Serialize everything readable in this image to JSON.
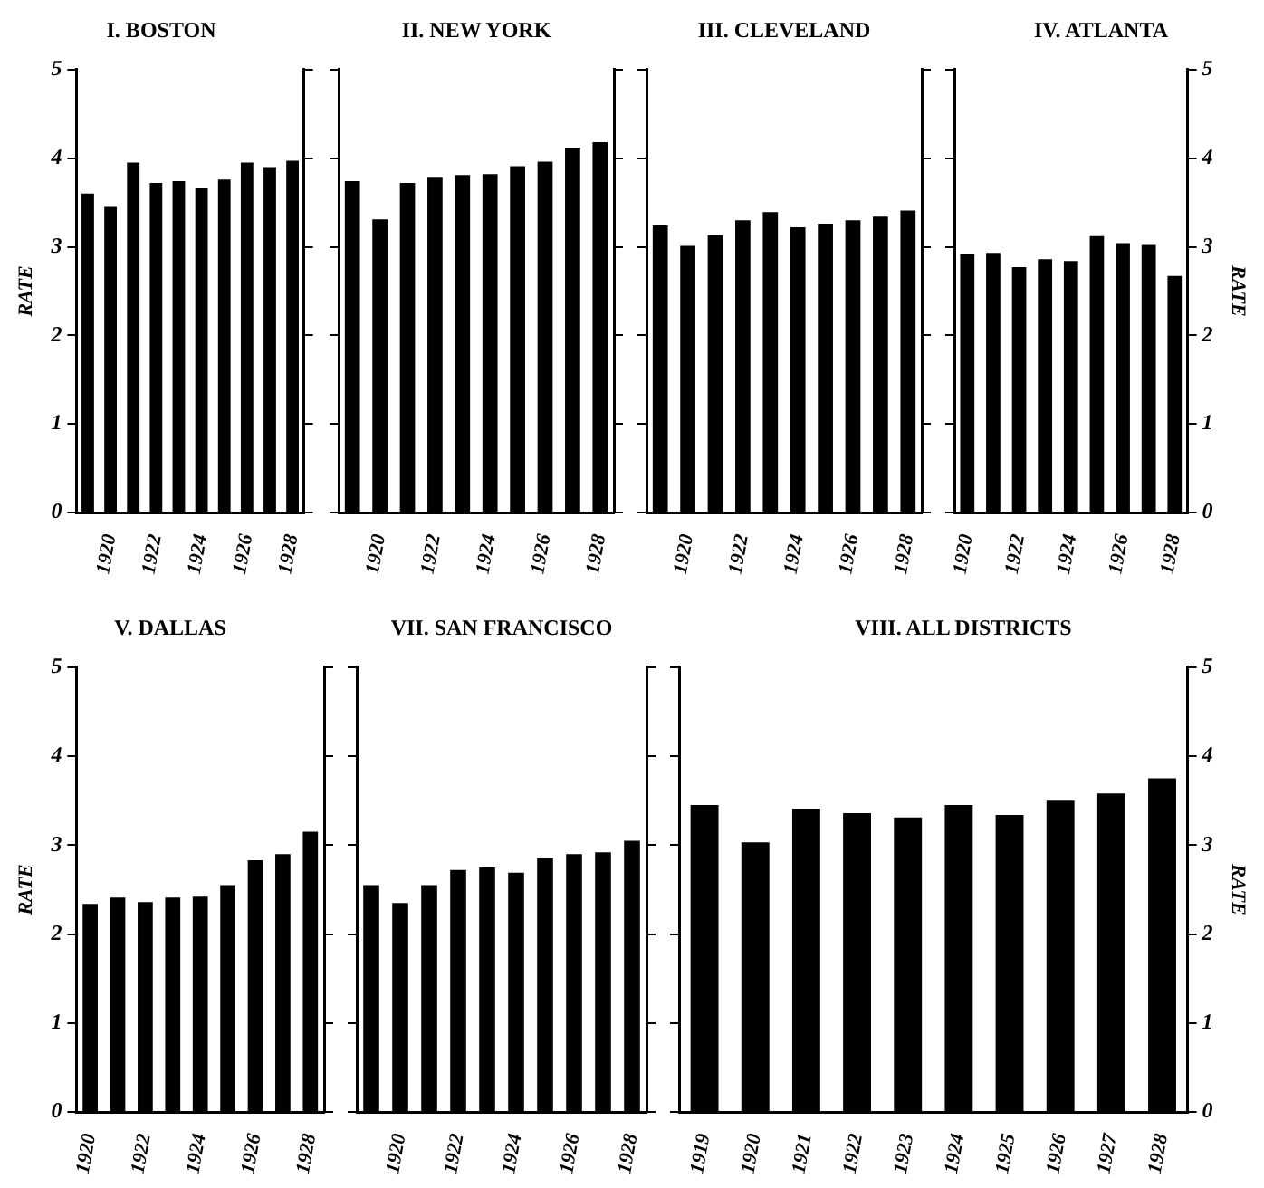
{
  "chart_data": [
    {
      "type": "bar",
      "title": "I. BOSTON",
      "ylabel": "RATE",
      "categories": [
        null,
        "1920",
        null,
        "1922",
        null,
        "1924",
        null,
        "1926",
        null,
        "1928"
      ],
      "values": [
        3.6,
        3.45,
        3.95,
        3.72,
        3.74,
        3.66,
        3.76,
        3.95,
        3.9,
        3.97
      ],
      "color": "#000000",
      "ylim": [
        0,
        5
      ],
      "yticks": [
        0,
        1,
        2,
        3,
        4,
        5
      ]
    },
    {
      "type": "bar",
      "title": "II. NEW YORK",
      "categories": [
        null,
        "1920",
        null,
        "1922",
        null,
        "1924",
        null,
        "1926",
        null,
        "1928"
      ],
      "values": [
        3.74,
        3.31,
        3.72,
        3.78,
        3.81,
        3.82,
        3.91,
        3.96,
        4.12,
        4.18
      ],
      "color": "#000000",
      "ylim": [
        0,
        5
      ],
      "yticks": [
        0,
        1,
        2,
        3,
        4,
        5
      ],
      "tick_labels": "x"
    },
    {
      "type": "bar",
      "title": "III. CLEVELAND",
      "categories": [
        null,
        "1920",
        null,
        "1922",
        null,
        "1924",
        null,
        "1926",
        null,
        "1928"
      ],
      "values": [
        3.24,
        3.01,
        3.13,
        3.3,
        3.39,
        3.22,
        3.26,
        3.3,
        3.34,
        3.41
      ],
      "color": "#000000",
      "ylim": [
        0,
        5
      ],
      "yticks": [
        0,
        1,
        2,
        3,
        4,
        5
      ],
      "tick_labels": "x"
    },
    {
      "type": "bar",
      "title": "IV. ATLANTA",
      "y2label": "RATE",
      "categories": [
        "1920",
        null,
        "1922",
        null,
        "1924",
        null,
        "1926",
        null,
        "1928"
      ],
      "series": [
        {
          "values": [
            2.92,
            2.93,
            2.77,
            2.86,
            2.84,
            3.12,
            3.04,
            3.02,
            2.67
          ],
          "color": "#000000",
          "axis": "y2"
        }
      ],
      "y2lim": [
        0,
        5
      ],
      "y2ticks": [
        0,
        1,
        2,
        3,
        4,
        5
      ]
    },
    {
      "type": "bar",
      "title": "V. DALLAS",
      "ylabel": "RATE",
      "categories": [
        "1920",
        null,
        "1922",
        null,
        "1924",
        null,
        "1926",
        null,
        "1928"
      ],
      "values": [
        2.34,
        2.41,
        2.36,
        2.41,
        2.42,
        2.55,
        2.83,
        2.9,
        3.15
      ],
      "color": "#000000",
      "ylim": [
        0,
        5
      ],
      "yticks": [
        0,
        1,
        2,
        3,
        4,
        5
      ]
    },
    {
      "type": "bar",
      "title": "VII. SAN FRANCISCO",
      "categories": [
        null,
        "1920",
        null,
        "1922",
        null,
        "1924",
        null,
        "1926",
        null,
        "1928"
      ],
      "values": [
        2.55,
        2.35,
        2.55,
        2.72,
        2.75,
        2.69,
        2.85,
        2.9,
        2.92,
        3.05
      ],
      "color": "#000000",
      "ylim": [
        0,
        5
      ],
      "yticks": [
        0,
        1,
        2,
        3,
        4,
        5
      ],
      "tick_labels": "x"
    },
    {
      "type": "bar",
      "title": "VIII. ALL DISTRICTS",
      "y2label": "RATE",
      "categories": [
        "1919",
        "1920",
        "1921",
        "1922",
        "1923",
        "1924",
        "1925",
        "1926",
        "1927",
        "1928"
      ],
      "series": [
        {
          "values": [
            3.45,
            3.03,
            3.41,
            3.36,
            3.31,
            3.45,
            3.34,
            3.5,
            3.58,
            3.75
          ],
          "color": "#000000",
          "axis": "y2"
        }
      ],
      "y2lim": [
        0,
        5
      ],
      "y2ticks": [
        0,
        1,
        2,
        3,
        4,
        5
      ]
    }
  ]
}
